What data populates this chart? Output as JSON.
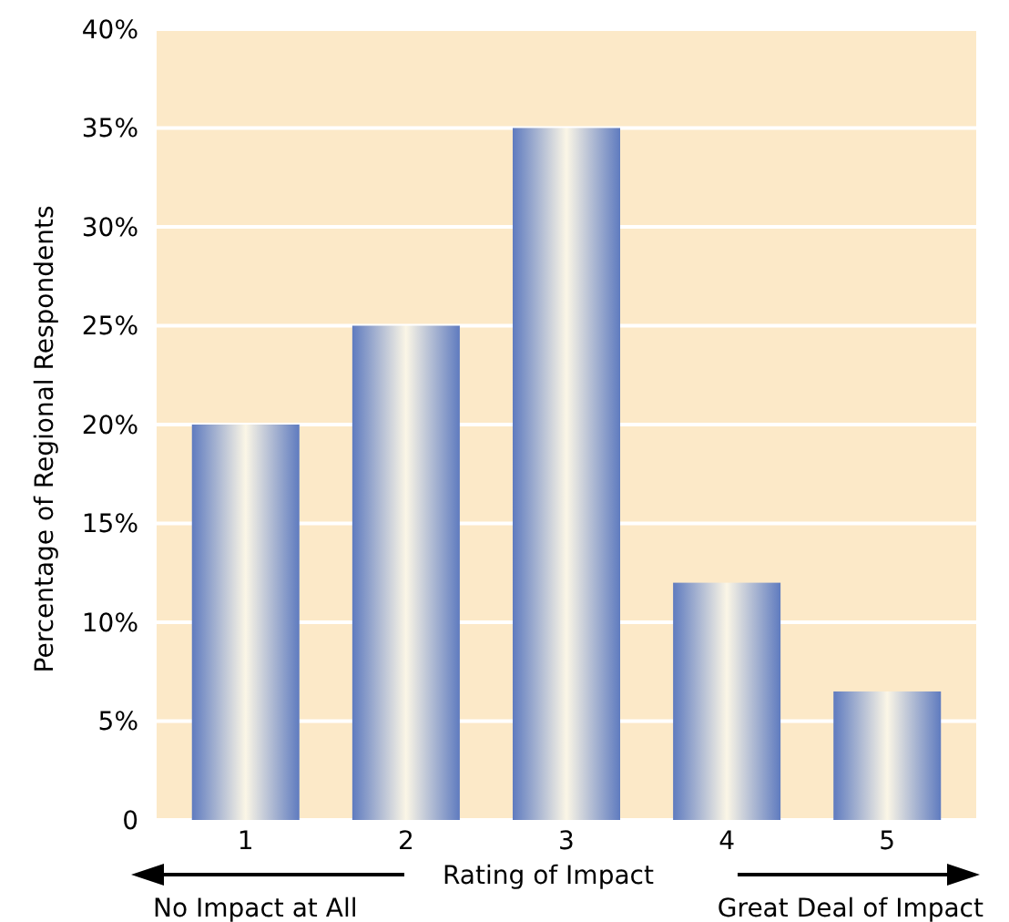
{
  "chart_data": {
    "type": "bar",
    "xlabel": "Rating of Impact",
    "ylabel": "Percentage of Regional Respondents",
    "categories": [
      "1",
      "2",
      "3",
      "4",
      "5"
    ],
    "values": [
      20,
      25,
      35,
      12,
      6.5
    ],
    "color": "#5f7bbf",
    "ylim": [
      0,
      40
    ],
    "yticks": [
      {
        "value": 0,
        "label": "0"
      },
      {
        "value": 5,
        "label": "5%"
      },
      {
        "value": 10,
        "label": "10%"
      },
      {
        "value": 15,
        "label": "15%"
      },
      {
        "value": 20,
        "label": "20%"
      },
      {
        "value": 25,
        "label": "25%"
      },
      {
        "value": 30,
        "label": "30%"
      },
      {
        "value": 35,
        "label": "35%"
      },
      {
        "value": 40,
        "label": "40%"
      }
    ],
    "grid": "y",
    "annotations": [
      "No Impact at All",
      "Great Deal of Impact"
    ]
  }
}
